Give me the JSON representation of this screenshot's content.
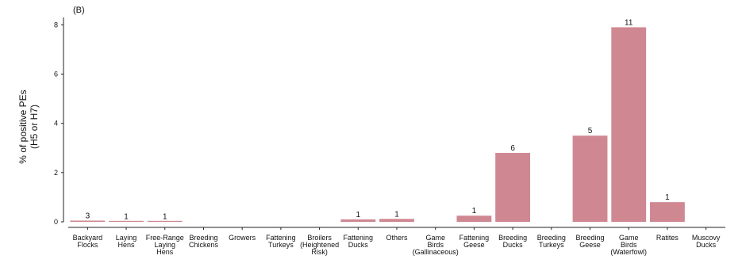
{
  "panel_tag": "(B)",
  "chart_data": {
    "type": "bar",
    "ylabel_lines": [
      "% of positive PEs",
      "(H5 or H7)"
    ],
    "ylim": [
      0,
      8.3
    ],
    "yticks": [
      0,
      2,
      4,
      6,
      8
    ],
    "grid": false,
    "bar_color": "#cf8891",
    "categories": [
      [
        "Backyard",
        "Flocks"
      ],
      [
        "Laying",
        "Hens"
      ],
      [
        "Free-Range",
        "Laying",
        "Hens"
      ],
      [
        "Breeding",
        "Chickens"
      ],
      [
        "Growers"
      ],
      [
        "Fattening",
        "Turkeys"
      ],
      [
        "Broilers",
        "(Heightened",
        "Risk)"
      ],
      [
        "Fattening",
        "Ducks"
      ],
      [
        "Others"
      ],
      [
        "Game",
        "Birds",
        "(Gallinaceous)"
      ],
      [
        "Fattening",
        "Geese"
      ],
      [
        "Breeding",
        "Ducks"
      ],
      [
        "Breeding",
        "Turkeys"
      ],
      [
        "Breeding",
        "Geese"
      ],
      [
        "Game",
        "Birds",
        "(Waterfowl)"
      ],
      [
        "Ratites"
      ],
      [
        "Muscovy",
        "Ducks"
      ]
    ],
    "values": [
      0.05,
      0.02,
      0.02,
      0,
      0,
      0,
      0,
      0.1,
      0.12,
      0,
      0.25,
      2.8,
      0,
      3.5,
      7.9,
      0.8,
      0
    ],
    "data_labels": [
      "3",
      "1",
      "1",
      "",
      "",
      "",
      "",
      "1",
      "1",
      "",
      "1",
      "6",
      "",
      "5",
      "11",
      "1",
      ""
    ]
  }
}
